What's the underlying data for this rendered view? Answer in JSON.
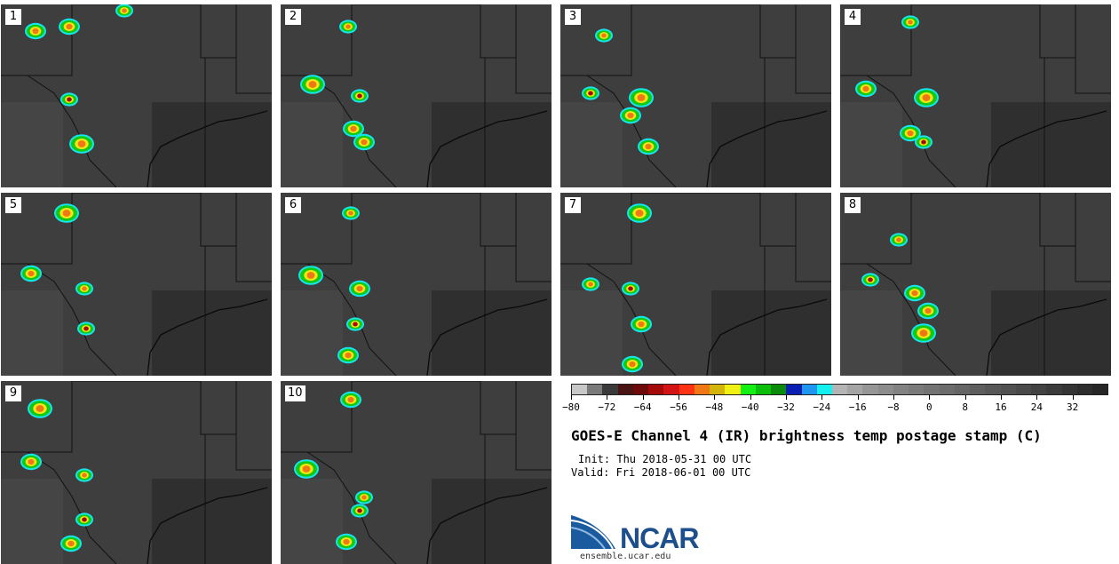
{
  "figure": {
    "title": "GOES-E Channel 4 (IR) brightness temp postage stamp (C)",
    "init": "Init: Thu 2018-05-31 00 UTC",
    "valid": "Valid: Fri 2018-06-01 00 UTC",
    "logo_text": "NCAR",
    "logo_url": "ensemble.ucar.edu"
  },
  "panels": [
    "1",
    "2",
    "3",
    "4",
    "5",
    "6",
    "7",
    "8",
    "9",
    "10"
  ],
  "colorbar": {
    "unit": "C",
    "range": [
      -80,
      40
    ],
    "tick_labels": [
      "−80",
      "−72",
      "−64",
      "−56",
      "−48",
      "−40",
      "−32",
      "−24",
      "−16",
      "−8",
      "0",
      "8",
      "16",
      "24",
      "32"
    ],
    "tick_values": [
      -80,
      -72,
      -64,
      -56,
      -48,
      -40,
      -32,
      -24,
      -16,
      -8,
      0,
      8,
      16,
      24,
      32
    ],
    "colors": [
      "#c8c8c8",
      "#7a7a7a",
      "#3a3a3a",
      "#4a1414",
      "#6e0a0a",
      "#a50a0a",
      "#d21414",
      "#ff3214",
      "#f07814",
      "#d2b40a",
      "#f0f014",
      "#14f014",
      "#0abe0a",
      "#0a8c0a",
      "#0a1eb4",
      "#1e96f0",
      "#14f0f0",
      "#b4b4b4",
      "#a5a5a5",
      "#969696",
      "#8c8c8c",
      "#828282",
      "#7a7a7a",
      "#737373",
      "#6c6c6c",
      "#656565",
      "#5e5e5e",
      "#575757",
      "#505050",
      "#494949",
      "#424242",
      "#3b3b3b",
      "#343434",
      "#2d2d2d",
      "#262626"
    ]
  }
}
